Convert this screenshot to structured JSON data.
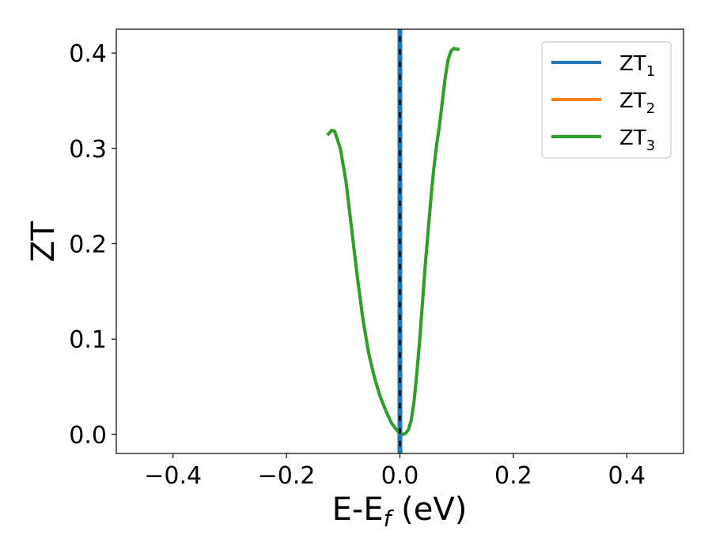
{
  "chart_data": {
    "type": "line",
    "xlabel_main": "E-E",
    "xlabel_sub": "f",
    "xlabel_tail": " (eV)",
    "ylabel": "ZT",
    "xlim": [
      -0.5,
      0.5
    ],
    "ylim": [
      -0.02,
      0.425
    ],
    "xticks": [
      -0.4,
      -0.2,
      0.0,
      0.2,
      0.4
    ],
    "xtick_labels": [
      "−0.4",
      "−0.2",
      "0.0",
      "0.2",
      "0.4"
    ],
    "yticks": [
      0.0,
      0.1,
      0.2,
      0.3,
      0.4
    ],
    "ytick_labels": [
      "0.0",
      "0.1",
      "0.2",
      "0.3",
      "0.4"
    ],
    "grid": false,
    "legend_position": "top-right",
    "vline": {
      "x": 0.0,
      "color": "#000000",
      "style": "dashed"
    },
    "series": [
      {
        "name": "ZT",
        "sub": "1",
        "color": "#1f77b4",
        "x": [
          0.0,
          0.0
        ],
        "y": [
          -0.02,
          0.425
        ]
      },
      {
        "name": "ZT",
        "sub": "2",
        "color": "#ff7f0e",
        "x": [
          -0.128,
          -0.12,
          -0.115,
          -0.105,
          -0.095,
          -0.085,
          -0.075,
          -0.065,
          -0.055,
          -0.045,
          -0.035,
          -0.025,
          -0.015,
          -0.005,
          0.0,
          0.005,
          0.01,
          0.015,
          0.02,
          0.025,
          0.03,
          0.035,
          0.04,
          0.045,
          0.05,
          0.055,
          0.06,
          0.065,
          0.07,
          0.075,
          0.08,
          0.085,
          0.09,
          0.095,
          0.1,
          0.105
        ],
        "y": [
          0.314,
          0.319,
          0.318,
          0.3,
          0.265,
          0.215,
          0.165,
          0.12,
          0.085,
          0.06,
          0.04,
          0.025,
          0.012,
          0.004,
          0.001,
          0.0,
          0.001,
          0.005,
          0.015,
          0.035,
          0.065,
          0.1,
          0.14,
          0.18,
          0.215,
          0.25,
          0.28,
          0.305,
          0.325,
          0.35,
          0.375,
          0.393,
          0.402,
          0.405,
          0.404,
          0.404
        ]
      },
      {
        "name": "ZT",
        "sub": "3",
        "color": "#2ca02c",
        "x": [
          -0.128,
          -0.12,
          -0.115,
          -0.105,
          -0.095,
          -0.085,
          -0.075,
          -0.065,
          -0.055,
          -0.045,
          -0.035,
          -0.025,
          -0.015,
          -0.005,
          0.0,
          0.005,
          0.01,
          0.015,
          0.02,
          0.025,
          0.03,
          0.035,
          0.04,
          0.045,
          0.05,
          0.055,
          0.06,
          0.065,
          0.07,
          0.075,
          0.08,
          0.085,
          0.09,
          0.095,
          0.1,
          0.105
        ],
        "y": [
          0.314,
          0.319,
          0.318,
          0.3,
          0.265,
          0.215,
          0.165,
          0.12,
          0.085,
          0.06,
          0.04,
          0.025,
          0.012,
          0.004,
          0.001,
          0.0,
          0.001,
          0.005,
          0.015,
          0.035,
          0.065,
          0.1,
          0.14,
          0.18,
          0.215,
          0.25,
          0.28,
          0.305,
          0.325,
          0.35,
          0.375,
          0.393,
          0.402,
          0.405,
          0.404,
          0.404
        ]
      }
    ]
  }
}
